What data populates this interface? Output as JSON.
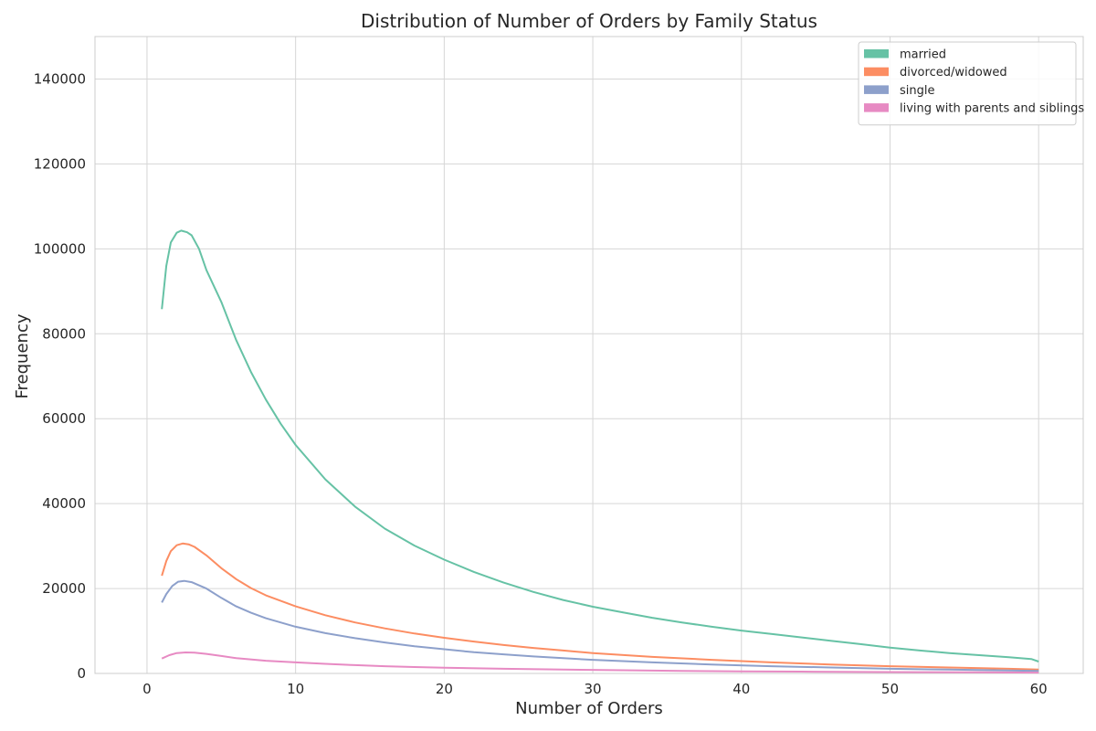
{
  "chart_data": {
    "type": "line",
    "title": "Distribution of Number of Orders by Family Status",
    "xlabel": "Number of Orders",
    "ylabel": "Frequency",
    "xlim": [
      -3.5,
      63
    ],
    "ylim": [
      0,
      150000
    ],
    "xticks": [
      0,
      10,
      20,
      30,
      40,
      50,
      60
    ],
    "yticks": [
      0,
      20000,
      40000,
      60000,
      80000,
      100000,
      120000,
      140000
    ],
    "grid": true,
    "legend_position": "top-right",
    "series": [
      {
        "name": "married",
        "color": "#66c2a5",
        "points": [
          [
            1,
            85800
          ],
          [
            1.3,
            96000
          ],
          [
            1.6,
            101500
          ],
          [
            2,
            103800
          ],
          [
            2.3,
            104300
          ],
          [
            2.7,
            103900
          ],
          [
            3,
            103200
          ],
          [
            3.5,
            100000
          ],
          [
            4,
            95000
          ],
          [
            5,
            87500
          ],
          [
            6,
            78500
          ],
          [
            7,
            71000
          ],
          [
            8,
            64500
          ],
          [
            9,
            58800
          ],
          [
            10,
            53800
          ],
          [
            12,
            45700
          ],
          [
            14,
            39300
          ],
          [
            16,
            34100
          ],
          [
            18,
            30100
          ],
          [
            20,
            26800
          ],
          [
            22,
            23900
          ],
          [
            24,
            21400
          ],
          [
            26,
            19200
          ],
          [
            28,
            17300
          ],
          [
            30,
            15700
          ],
          [
            32,
            14400
          ],
          [
            34,
            13100
          ],
          [
            36,
            12000
          ],
          [
            38,
            11000
          ],
          [
            40,
            10100
          ],
          [
            42,
            9300
          ],
          [
            44,
            8500
          ],
          [
            46,
            7700
          ],
          [
            48,
            6900
          ],
          [
            50,
            6100
          ],
          [
            52,
            5400
          ],
          [
            54,
            4800
          ],
          [
            56,
            4300
          ],
          [
            58,
            3800
          ],
          [
            59.5,
            3400
          ],
          [
            60,
            2800
          ]
        ]
      },
      {
        "name": "divorced/widowed",
        "color": "#fc8d62",
        "points": [
          [
            1,
            23000
          ],
          [
            1.3,
            26500
          ],
          [
            1.6,
            28800
          ],
          [
            2,
            30200
          ],
          [
            2.4,
            30600
          ],
          [
            2.8,
            30400
          ],
          [
            3.2,
            29800
          ],
          [
            4,
            27800
          ],
          [
            5,
            24800
          ],
          [
            6,
            22200
          ],
          [
            7,
            20100
          ],
          [
            8,
            18400
          ],
          [
            10,
            15800
          ],
          [
            12,
            13700
          ],
          [
            14,
            12000
          ],
          [
            16,
            10600
          ],
          [
            18,
            9400
          ],
          [
            20,
            8400
          ],
          [
            22,
            7500
          ],
          [
            24,
            6700
          ],
          [
            26,
            6000
          ],
          [
            28,
            5400
          ],
          [
            30,
            4800
          ],
          [
            34,
            3900
          ],
          [
            38,
            3200
          ],
          [
            42,
            2600
          ],
          [
            46,
            2100
          ],
          [
            50,
            1700
          ],
          [
            54,
            1400
          ],
          [
            58,
            1100
          ],
          [
            60,
            900
          ]
        ]
      },
      {
        "name": "single",
        "color": "#8da0cb",
        "points": [
          [
            1,
            16700
          ],
          [
            1.3,
            18700
          ],
          [
            1.7,
            20600
          ],
          [
            2.1,
            21600
          ],
          [
            2.5,
            21800
          ],
          [
            3,
            21500
          ],
          [
            4,
            20000
          ],
          [
            5,
            17800
          ],
          [
            6,
            15800
          ],
          [
            7,
            14300
          ],
          [
            8,
            13000
          ],
          [
            10,
            11000
          ],
          [
            12,
            9500
          ],
          [
            14,
            8300
          ],
          [
            16,
            7300
          ],
          [
            18,
            6400
          ],
          [
            20,
            5700
          ],
          [
            22,
            5000
          ],
          [
            24,
            4500
          ],
          [
            26,
            4000
          ],
          [
            28,
            3600
          ],
          [
            30,
            3200
          ],
          [
            34,
            2600
          ],
          [
            38,
            2100
          ],
          [
            42,
            1700
          ],
          [
            46,
            1400
          ],
          [
            50,
            1100
          ],
          [
            54,
            900
          ],
          [
            58,
            700
          ],
          [
            60,
            600
          ]
        ]
      },
      {
        "name": "living with parents and siblings",
        "color": "#e78ac3",
        "points": [
          [
            1,
            3500
          ],
          [
            1.5,
            4300
          ],
          [
            2,
            4800
          ],
          [
            2.6,
            4950
          ],
          [
            3.2,
            4900
          ],
          [
            4,
            4600
          ],
          [
            5,
            4100
          ],
          [
            6,
            3600
          ],
          [
            8,
            3000
          ],
          [
            10,
            2600
          ],
          [
            12,
            2250
          ],
          [
            14,
            1950
          ],
          [
            16,
            1700
          ],
          [
            18,
            1500
          ],
          [
            20,
            1350
          ],
          [
            24,
            1100
          ],
          [
            28,
            900
          ],
          [
            32,
            750
          ],
          [
            36,
            600
          ],
          [
            40,
            500
          ],
          [
            44,
            420
          ],
          [
            48,
            350
          ],
          [
            52,
            300
          ],
          [
            56,
            250
          ],
          [
            60,
            200
          ]
        ]
      }
    ]
  }
}
